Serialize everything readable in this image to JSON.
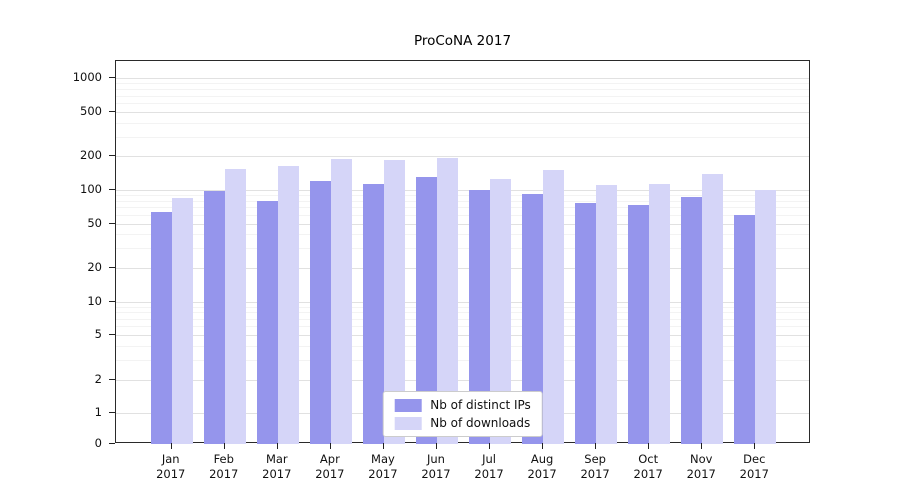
{
  "chart_data": {
    "type": "bar",
    "title": "ProCoNA 2017",
    "year": "2017",
    "categories": [
      "Jan",
      "Feb",
      "Mar",
      "Apr",
      "May",
      "Jun",
      "Jul",
      "Aug",
      "Sep",
      "Oct",
      "Nov",
      "Dec"
    ],
    "series": [
      {
        "name": "Nb of distinct IPs",
        "color": "#9595ec",
        "values": [
          63,
          97,
          80,
          120,
          112,
          130,
          100,
          92,
          77,
          73,
          87,
          60
        ]
      },
      {
        "name": "Nb of downloads",
        "color": "#d5d5f8",
        "values": [
          85,
          155,
          165,
          190,
          185,
          195,
          125,
          150,
          110,
          112,
          138,
          100
        ]
      }
    ],
    "yscale": "symlog",
    "yticks": [
      0,
      1,
      2,
      5,
      10,
      20,
      50,
      100,
      200,
      500,
      1000
    ],
    "ylim": [
      0,
      1400
    ],
    "grid": true,
    "legend_position": "lower center"
  }
}
